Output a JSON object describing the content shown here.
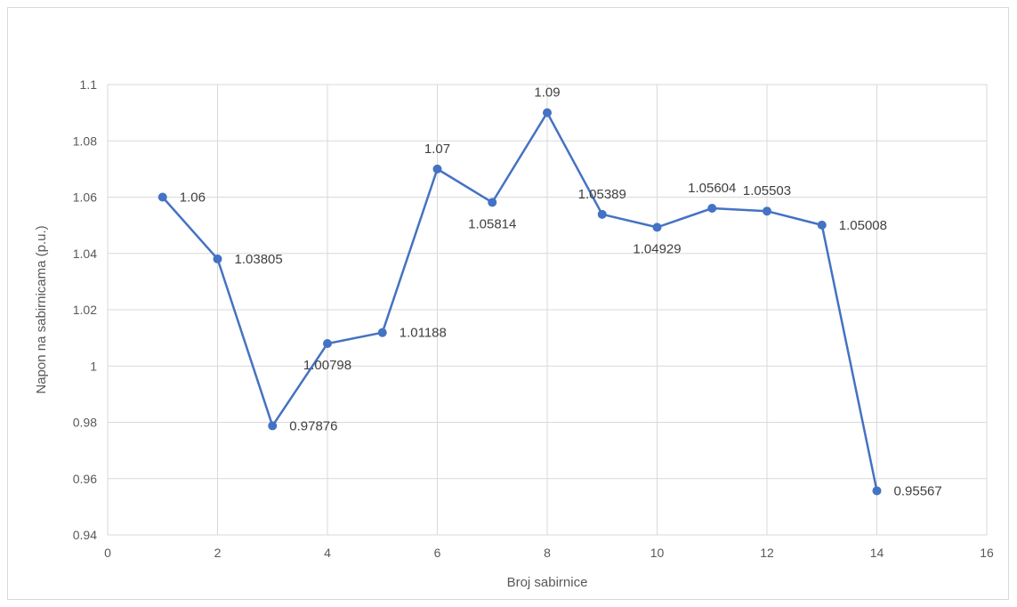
{
  "chart_data": {
    "type": "scatter",
    "title": "",
    "xlabel": "Broj sabirnice",
    "ylabel": "Napon na sabirnicama (p.u.)",
    "xlim": [
      0,
      16
    ],
    "ylim": [
      0.94,
      1.1
    ],
    "x_ticks": [
      0,
      2,
      4,
      6,
      8,
      10,
      12,
      14,
      16
    ],
    "y_ticks": [
      "0.94",
      "0.96",
      "0.98",
      "1",
      "1.02",
      "1.04",
      "1.06",
      "1.08",
      "1.1"
    ],
    "grid": true,
    "line_color": "#4472c4",
    "series": [
      {
        "x": [
          1,
          2,
          3,
          4,
          5,
          6,
          7,
          8,
          9,
          10,
          11,
          12,
          13,
          14
        ],
        "y": [
          1.06,
          1.03805,
          0.97876,
          1.00798,
          1.01188,
          1.07,
          1.05814,
          1.09,
          1.05389,
          1.04929,
          1.05604,
          1.05503,
          1.05008,
          0.95567
        ],
        "labels": [
          "1.06",
          "1.03805",
          "0.97876",
          "1.00798",
          "1.01188",
          "1.07",
          "1.05814",
          "1.09",
          "1.05389",
          "1.04929",
          "1.05604",
          "1.05503",
          "1.05008",
          "0.95567"
        ],
        "label_positions": [
          "right",
          "right",
          "right",
          "below",
          "right",
          "above",
          "below",
          "above",
          "above",
          "below",
          "above",
          "above",
          "right",
          "right"
        ]
      }
    ]
  }
}
